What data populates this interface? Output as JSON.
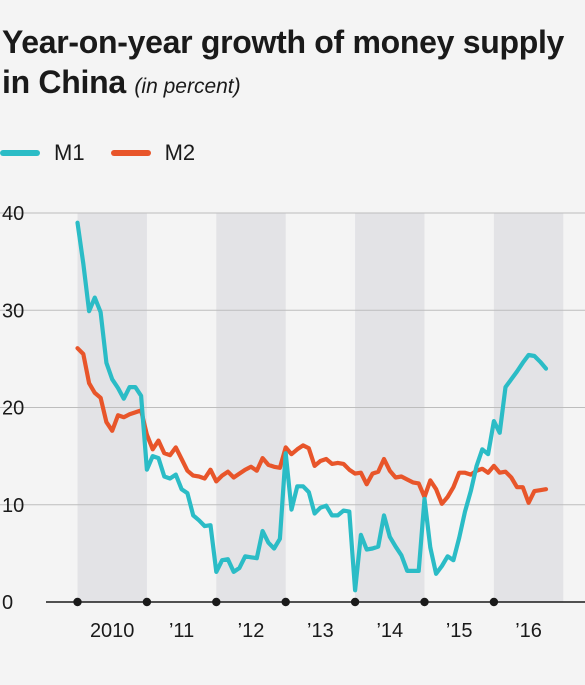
{
  "title": "Year-on-year growth of money supply in China",
  "subtitle": "(in percent)",
  "colors": {
    "M1": "#2bbcc6",
    "M2": "#e8552a",
    "shade": "#e3e3e6",
    "grid": "#bdbdbd"
  },
  "chart_data": {
    "type": "line",
    "ylim": [
      0,
      40
    ],
    "y_ticks": [
      0,
      10,
      20,
      30,
      40
    ],
    "xlim": [
      2010.0,
      2017.0
    ],
    "x_tick_labels": [
      {
        "x": 2010.5,
        "label": "2010"
      },
      {
        "x": 2011.5,
        "label": "’11"
      },
      {
        "x": 2012.5,
        "label": "’12"
      },
      {
        "x": 2013.5,
        "label": "’13"
      },
      {
        "x": 2014.5,
        "label": "’14"
      },
      {
        "x": 2015.5,
        "label": "’15"
      },
      {
        "x": 2016.5,
        "label": "’16"
      }
    ],
    "year_markers": [
      2010,
      2011,
      2012,
      2013,
      2014,
      2015,
      2016
    ],
    "shaded_years": [
      2010,
      2012,
      2014,
      2016
    ],
    "legend": [
      "M1",
      "M2"
    ],
    "series": [
      {
        "name": "M1",
        "x": [
          2010.0,
          2010.083,
          2010.167,
          2010.25,
          2010.333,
          2010.417,
          2010.5,
          2010.583,
          2010.667,
          2010.75,
          2010.833,
          2010.917,
          2011.0,
          2011.083,
          2011.167,
          2011.25,
          2011.333,
          2011.417,
          2011.5,
          2011.583,
          2011.667,
          2011.75,
          2011.833,
          2011.917,
          2012.0,
          2012.083,
          2012.167,
          2012.25,
          2012.333,
          2012.417,
          2012.5,
          2012.583,
          2012.667,
          2012.75,
          2012.833,
          2012.917,
          2013.0,
          2013.083,
          2013.167,
          2013.25,
          2013.333,
          2013.417,
          2013.5,
          2013.583,
          2013.667,
          2013.75,
          2013.833,
          2013.917,
          2014.0,
          2014.083,
          2014.167,
          2014.25,
          2014.333,
          2014.417,
          2014.5,
          2014.583,
          2014.667,
          2014.75,
          2014.833,
          2014.917,
          2015.0,
          2015.083,
          2015.167,
          2015.25,
          2015.333,
          2015.417,
          2015.5,
          2015.583,
          2015.667,
          2015.75,
          2015.833,
          2015.917,
          2016.0,
          2016.083,
          2016.167,
          2016.25,
          2016.333,
          2016.417,
          2016.5,
          2016.583,
          2016.667,
          2016.75
        ],
        "values": [
          39.0,
          34.8,
          29.9,
          31.3,
          29.8,
          24.6,
          22.9,
          22.0,
          20.9,
          22.1,
          22.1,
          21.2,
          13.6,
          15.0,
          14.8,
          12.9,
          12.7,
          13.1,
          11.6,
          11.2,
          8.9,
          8.4,
          7.8,
          7.9,
          3.1,
          4.3,
          4.4,
          3.1,
          3.5,
          4.7,
          4.6,
          4.5,
          7.3,
          6.1,
          5.5,
          6.5,
          15.3,
          9.5,
          11.9,
          11.9,
          11.3,
          9.1,
          9.7,
          9.9,
          8.9,
          8.9,
          9.4,
          9.3,
          1.2,
          6.9,
          5.4,
          5.5,
          5.7,
          8.9,
          6.7,
          5.7,
          4.8,
          3.2,
          3.2,
          3.2,
          10.6,
          5.6,
          2.9,
          3.7,
          4.7,
          4.3,
          6.6,
          9.3,
          11.4,
          14.0,
          15.7,
          15.2,
          18.6,
          17.4,
          22.1,
          22.9,
          23.7,
          24.6,
          25.4,
          25.3,
          24.7,
          24.0
        ]
      },
      {
        "name": "M2",
        "x": [
          2010.0,
          2010.083,
          2010.167,
          2010.25,
          2010.333,
          2010.417,
          2010.5,
          2010.583,
          2010.667,
          2010.75,
          2010.833,
          2010.917,
          2011.0,
          2011.083,
          2011.167,
          2011.25,
          2011.333,
          2011.417,
          2011.5,
          2011.583,
          2011.667,
          2011.75,
          2011.833,
          2011.917,
          2012.0,
          2012.083,
          2012.167,
          2012.25,
          2012.333,
          2012.417,
          2012.5,
          2012.583,
          2012.667,
          2012.75,
          2012.833,
          2012.917,
          2013.0,
          2013.083,
          2013.167,
          2013.25,
          2013.333,
          2013.417,
          2013.5,
          2013.583,
          2013.667,
          2013.75,
          2013.833,
          2013.917,
          2014.0,
          2014.083,
          2014.167,
          2014.25,
          2014.333,
          2014.417,
          2014.5,
          2014.583,
          2014.667,
          2014.75,
          2014.833,
          2014.917,
          2015.0,
          2015.083,
          2015.167,
          2015.25,
          2015.333,
          2015.417,
          2015.5,
          2015.583,
          2015.667,
          2015.75,
          2015.833,
          2015.917,
          2016.0,
          2016.083,
          2016.167,
          2016.25,
          2016.333,
          2016.417,
          2016.5,
          2016.583,
          2016.667,
          2016.75
        ],
        "values": [
          26.1,
          25.5,
          22.5,
          21.5,
          21.0,
          18.5,
          17.6,
          19.2,
          19.0,
          19.3,
          19.5,
          19.7,
          17.2,
          15.7,
          16.6,
          15.3,
          15.1,
          15.9,
          14.7,
          13.5,
          13.0,
          12.9,
          12.7,
          13.6,
          12.4,
          13.0,
          13.4,
          12.8,
          13.2,
          13.6,
          13.9,
          13.5,
          14.8,
          14.1,
          13.9,
          13.8,
          15.9,
          15.2,
          15.7,
          16.1,
          15.8,
          14.0,
          14.5,
          14.7,
          14.2,
          14.3,
          14.2,
          13.6,
          13.2,
          13.3,
          12.1,
          13.2,
          13.4,
          14.7,
          13.5,
          12.8,
          12.9,
          12.6,
          12.3,
          12.2,
          10.8,
          12.5,
          11.6,
          10.1,
          10.8,
          11.8,
          13.3,
          13.3,
          13.1,
          13.5,
          13.7,
          13.3,
          14.0,
          13.3,
          13.4,
          12.8,
          11.8,
          11.8,
          10.2,
          11.4,
          11.5,
          11.6
        ]
      }
    ]
  }
}
